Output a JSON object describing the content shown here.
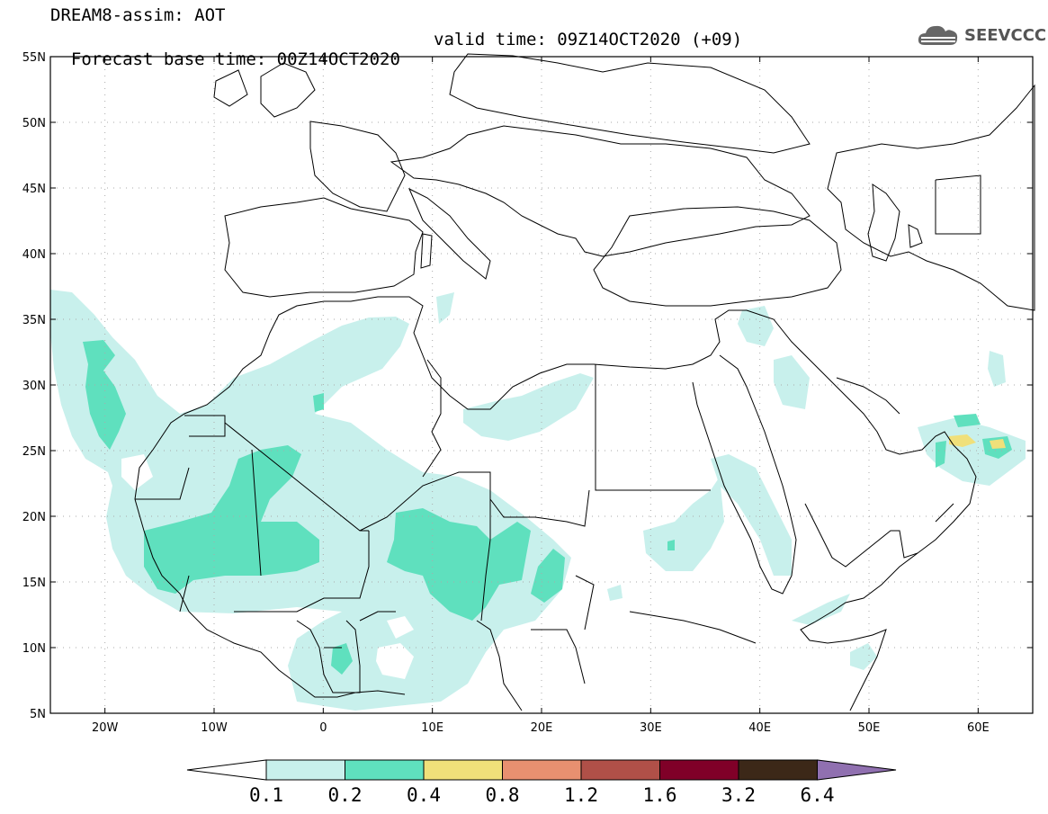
{
  "header": {
    "line1": "DREAM8-assim: AOT",
    "line2": "Forecast base time: 00Z14OCT2020",
    "valid": "valid time: 09Z14OCT2020 (+09)"
  },
  "logo": {
    "text": "SEEVCCC",
    "icon": "cloud-icon"
  },
  "map": {
    "lon_range": [
      -25,
      65
    ],
    "lat_range": [
      5,
      55
    ],
    "lat_labels": [
      "55N",
      "50N",
      "45N",
      "40N",
      "35N",
      "30N",
      "25N",
      "20N",
      "15N",
      "10N",
      "5N"
    ],
    "lon_labels": [
      "20W",
      "10W",
      "0",
      "10E",
      "20E",
      "30E",
      "40E",
      "50E",
      "60E"
    ],
    "gridlines": "dotted"
  },
  "colorbar": {
    "levels": [
      "0.1",
      "0.2",
      "0.4",
      "0.8",
      "1.2",
      "1.6",
      "3.2",
      "6.4"
    ],
    "colors": [
      "#c8f0ec",
      "#5fe0be",
      "#f0e07a",
      "#e89070",
      "#b05048",
      "#800028",
      "#3c2818",
      "#9070b0"
    ],
    "under_color": "#ffffff"
  }
}
